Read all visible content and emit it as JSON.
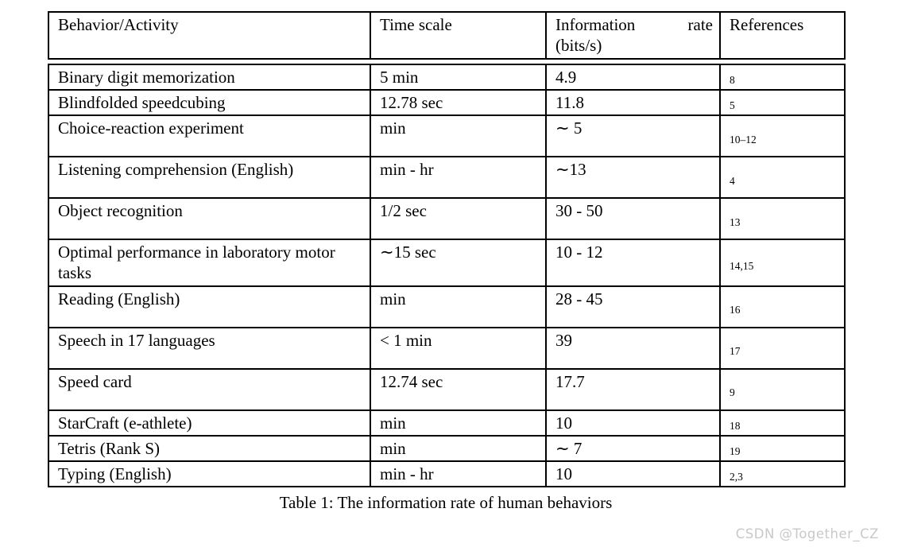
{
  "page": {
    "caption": "Table 1: The information rate of human behaviors",
    "watermark": "CSDN @Together_CZ"
  },
  "table": {
    "headers": [
      "Behavior/Activity",
      "Time scale",
      "Information rate (bits/s)",
      "References"
    ],
    "rows": [
      {
        "behavior": "Binary digit memorization",
        "time_scale": "5 min",
        "information_rate": "4.9",
        "references": "8"
      },
      {
        "behavior": "Blindfolded speedcubing",
        "time_scale": "12.78 sec",
        "information_rate": "11.8",
        "references": "5"
      },
      {
        "behavior": "Choice-reaction experiment",
        "time_scale": "min",
        "information_rate": "∼ 5",
        "references": "10–12"
      },
      {
        "behavior": "Listening comprehension (English)",
        "time_scale": "min - hr",
        "information_rate": "∼13",
        "references": "4"
      },
      {
        "behavior": "Object recognition",
        "time_scale": "1/2 sec",
        "information_rate": "30 - 50",
        "references": "13"
      },
      {
        "behavior": "Optimal performance in laboratory motor tasks",
        "time_scale": "∼15 sec",
        "information_rate": "10 - 12",
        "references": "14,15"
      },
      {
        "behavior": "Reading (English)",
        "time_scale": "min",
        "information_rate": "28 - 45",
        "references": "16"
      },
      {
        "behavior": "Speech in 17 languages",
        "time_scale": "< 1 min",
        "information_rate": "39",
        "references": "17"
      },
      {
        "behavior": "Speed card",
        "time_scale": "12.74 sec",
        "information_rate": "17.7",
        "references": "9"
      },
      {
        "behavior": "StarCraft (e-athlete)",
        "time_scale": "min",
        "information_rate": "10",
        "references": "18"
      },
      {
        "behavior": "Tetris (Rank S)",
        "time_scale": "min",
        "information_rate": "∼ 7",
        "references": "19"
      },
      {
        "behavior": "Typing (English)",
        "time_scale": "min - hr",
        "information_rate": "10",
        "references": "2,3"
      }
    ]
  },
  "colors": {
    "border": "#000000",
    "text": "#000000",
    "watermark": "#c8c8cd",
    "background": "#ffffff"
  }
}
